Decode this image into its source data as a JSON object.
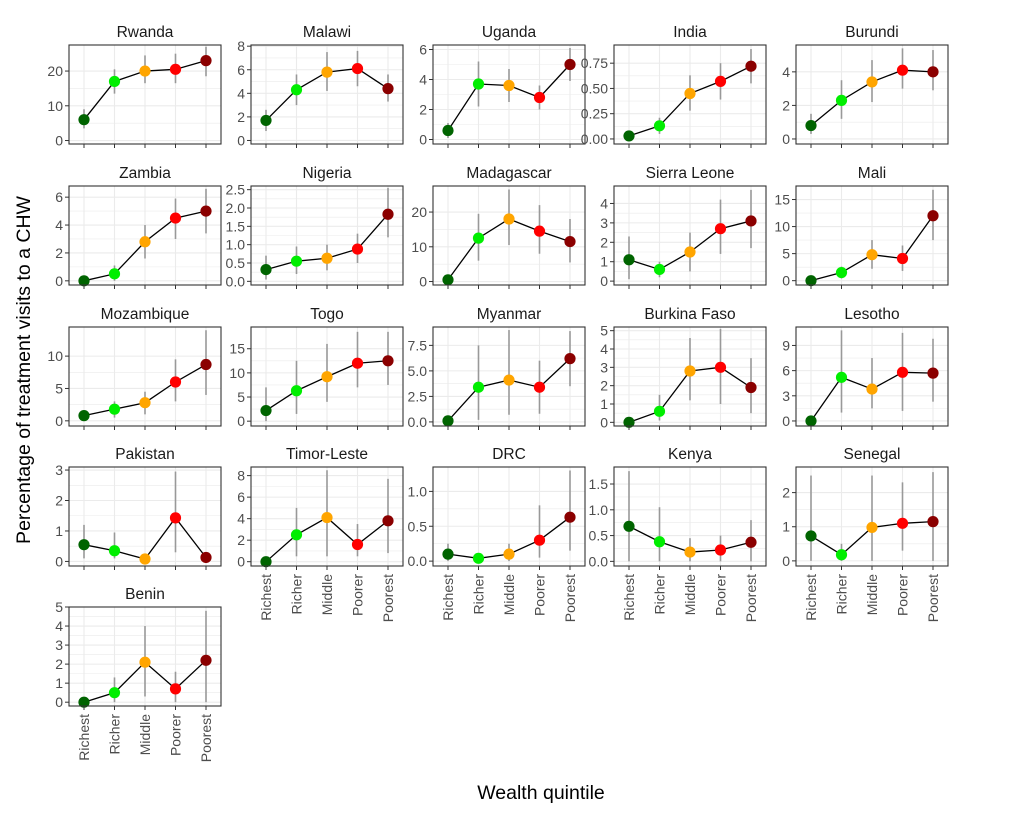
{
  "chart_data": {
    "type": "line",
    "xlabel": "Wealth quintile",
    "ylabel": "Percentage of treatment visits to a CHW",
    "categories": [
      "Richest",
      "Richer",
      "Middle",
      "Poorer",
      "Poorest"
    ],
    "point_colors": [
      "#006400",
      "#00EE00",
      "#FFA500",
      "#FF0000",
      "#8B0000"
    ],
    "errorbar_color": "#999999",
    "line_color": "#000000",
    "panel_background": "#ffffff",
    "grid_color": "#ebebeb",
    "grid": true,
    "panels": [
      {
        "title": "Rwanda",
        "ylim": [
          -1,
          27.5
        ],
        "yticks": [
          0,
          10,
          20
        ],
        "yticklabels": [
          "0",
          "10",
          "20"
        ],
        "values": [
          6.0,
          17.0,
          20.0,
          20.5,
          23.0
        ],
        "lower": [
          3.5,
          13.5,
          16.5,
          16.5,
          18.5
        ],
        "upper": [
          9.0,
          20.5,
          24.5,
          25.0,
          27.0
        ]
      },
      {
        "title": "Malawi",
        "ylim": [
          -0.3,
          8.1
        ],
        "yticks": [
          0,
          2,
          4,
          6,
          8
        ],
        "yticklabels": [
          "0",
          "2",
          "4",
          "6",
          "8"
        ],
        "values": [
          1.7,
          4.3,
          5.8,
          6.1,
          4.4
        ],
        "lower": [
          0.8,
          3.0,
          4.2,
          4.6,
          3.3
        ],
        "upper": [
          2.6,
          5.6,
          7.5,
          7.6,
          5.6
        ]
      },
      {
        "title": "Uganda",
        "ylim": [
          -0.3,
          6.3
        ],
        "yticks": [
          0,
          2,
          4,
          6
        ],
        "yticklabels": [
          "0",
          "2",
          "4",
          "6"
        ],
        "values": [
          0.6,
          3.7,
          3.6,
          2.8,
          5.0
        ],
        "lower": [
          0.1,
          2.2,
          2.5,
          2.0,
          3.9
        ],
        "upper": [
          1.1,
          5.2,
          4.7,
          3.6,
          6.1
        ]
      },
      {
        "title": "India",
        "ylim": [
          -0.05,
          0.93
        ],
        "yticks": [
          0,
          0.25,
          0.5,
          0.75
        ],
        "yticklabels": [
          "0.00",
          "0.25",
          "0.50",
          "0.75"
        ],
        "values": [
          0.03,
          0.13,
          0.45,
          0.57,
          0.72
        ],
        "lower": [
          0.0,
          0.05,
          0.28,
          0.39,
          0.55
        ],
        "upper": [
          0.06,
          0.21,
          0.63,
          0.75,
          0.89
        ]
      },
      {
        "title": "Burundi",
        "ylim": [
          -0.3,
          5.6
        ],
        "yticks": [
          0,
          2,
          4
        ],
        "yticklabels": [
          "0",
          "2",
          "4"
        ],
        "values": [
          0.8,
          2.3,
          3.4,
          4.1,
          4.0
        ],
        "lower": [
          0.3,
          1.2,
          2.2,
          3.0,
          2.9
        ],
        "upper": [
          1.5,
          3.5,
          4.7,
          5.4,
          5.3
        ]
      },
      {
        "title": "Zambia",
        "ylim": [
          -0.3,
          6.8
        ],
        "yticks": [
          0,
          2,
          4,
          6
        ],
        "yticklabels": [
          "0",
          "2",
          "4",
          "6"
        ],
        "values": [
          0.0,
          0.5,
          2.8,
          4.5,
          5.0
        ],
        "lower": [
          0.0,
          0.0,
          1.6,
          3.0,
          3.4
        ],
        "upper": [
          0.1,
          1.1,
          4.0,
          5.9,
          6.6
        ]
      },
      {
        "title": "Nigeria",
        "ylim": [
          -0.1,
          2.6
        ],
        "yticks": [
          0,
          0.5,
          1,
          1.5,
          2,
          2.5
        ],
        "yticklabels": [
          "0.0",
          "0.5",
          "1.0",
          "1.5",
          "2.0",
          "2.5"
        ],
        "values": [
          0.32,
          0.55,
          0.63,
          0.88,
          1.83
        ],
        "lower": [
          0.05,
          0.2,
          0.3,
          0.5,
          1.2
        ],
        "upper": [
          0.7,
          0.95,
          1.0,
          1.3,
          2.55
        ]
      },
      {
        "title": "Madagascar",
        "ylim": [
          -1,
          27.5
        ],
        "yticks": [
          0,
          10,
          20
        ],
        "yticklabels": [
          "0",
          "10",
          "20"
        ],
        "values": [
          0.5,
          12.5,
          18.0,
          14.5,
          11.5
        ],
        "lower": [
          0.0,
          6.0,
          10.5,
          8.0,
          5.5
        ],
        "upper": [
          1.5,
          19.5,
          26.5,
          22.0,
          18.0
        ]
      },
      {
        "title": "Sierra Leone",
        "ylim": [
          -0.2,
          4.9
        ],
        "yticks": [
          0,
          1,
          2,
          3,
          4
        ],
        "yticklabels": [
          "0",
          "1",
          "2",
          "3",
          "4"
        ],
        "values": [
          1.1,
          0.6,
          1.5,
          2.7,
          3.1
        ],
        "lower": [
          0.1,
          0.2,
          0.5,
          1.4,
          1.7
        ],
        "upper": [
          2.3,
          1.0,
          2.5,
          4.2,
          4.7
        ]
      },
      {
        "title": "Mali",
        "ylim": [
          -0.8,
          17.5
        ],
        "yticks": [
          0,
          5,
          10,
          15
        ],
        "yticklabels": [
          "0",
          "5",
          "10",
          "15"
        ],
        "values": [
          0.0,
          1.5,
          4.8,
          4.1,
          12.0
        ],
        "lower": [
          0.0,
          0.4,
          2.2,
          1.8,
          7.5
        ],
        "upper": [
          0.2,
          2.6,
          7.5,
          6.5,
          16.8
        ]
      },
      {
        "title": "Mozambique",
        "ylim": [
          -0.8,
          14.5
        ],
        "yticks": [
          0,
          5,
          10
        ],
        "yticklabels": [
          "0",
          "5",
          "10"
        ],
        "values": [
          0.8,
          1.8,
          2.8,
          6.0,
          8.7
        ],
        "lower": [
          0.2,
          0.5,
          1.0,
          3.0,
          4.0
        ],
        "upper": [
          1.4,
          3.0,
          4.5,
          9.5,
          14.0
        ]
      },
      {
        "title": "Togo",
        "ylim": [
          -1,
          19.5
        ],
        "yticks": [
          0,
          5,
          10,
          15
        ],
        "yticklabels": [
          "0",
          "5",
          "10",
          "15"
        ],
        "values": [
          2.2,
          6.3,
          9.2,
          12.0,
          12.5
        ],
        "lower": [
          0.0,
          1.5,
          4.0,
          7.0,
          7.5
        ],
        "upper": [
          7.0,
          12.5,
          16.0,
          18.5,
          18.5
        ]
      },
      {
        "title": "Myanmar",
        "ylim": [
          -0.4,
          9.3
        ],
        "yticks": [
          0,
          2.5,
          5,
          7.5
        ],
        "yticklabels": [
          "0.0",
          "2.5",
          "5.0",
          "7.5"
        ],
        "values": [
          0.1,
          3.4,
          4.1,
          3.4,
          6.2
        ],
        "lower": [
          0.0,
          0.2,
          0.7,
          0.8,
          3.5
        ],
        "upper": [
          0.3,
          7.5,
          9.0,
          6.0,
          8.9
        ]
      },
      {
        "title": "Burkina Faso",
        "ylim": [
          -0.2,
          5.2
        ],
        "yticks": [
          0,
          1,
          2,
          3,
          4,
          5
        ],
        "yticklabels": [
          "0",
          "1",
          "2",
          "3",
          "4",
          "5"
        ],
        "values": [
          0.0,
          0.6,
          2.8,
          3.0,
          1.9
        ],
        "lower": [
          0.0,
          0.1,
          1.2,
          1.0,
          0.5
        ],
        "upper": [
          0.2,
          1.5,
          4.6,
          5.1,
          3.5
        ]
      },
      {
        "title": "Lesotho",
        "ylim": [
          -0.6,
          11.2
        ],
        "yticks": [
          0,
          3,
          6,
          9
        ],
        "yticklabels": [
          "0",
          "3",
          "6",
          "9"
        ],
        "values": [
          0.0,
          5.2,
          3.8,
          5.8,
          5.7
        ],
        "lower": [
          0.0,
          1.0,
          1.5,
          1.2,
          2.3
        ],
        "upper": [
          0.3,
          10.8,
          7.5,
          10.5,
          9.8
        ]
      },
      {
        "title": "Pakistan",
        "ylim": [
          -0.15,
          3.1
        ],
        "yticks": [
          0,
          1,
          2,
          3
        ],
        "yticklabels": [
          "0",
          "1",
          "2",
          "3"
        ],
        "values": [
          0.55,
          0.35,
          0.08,
          1.43,
          0.13
        ],
        "lower": [
          0.1,
          0.1,
          0.0,
          0.3,
          0.0
        ],
        "upper": [
          1.2,
          0.95,
          0.25,
          2.95,
          0.3
        ]
      },
      {
        "title": "Timor-Leste",
        "ylim": [
          -0.4,
          8.8
        ],
        "yticks": [
          0,
          2,
          4,
          6,
          8
        ],
        "yticklabels": [
          "0",
          "2",
          "4",
          "6",
          "8"
        ],
        "values": [
          0.0,
          2.5,
          4.1,
          1.6,
          3.8
        ],
        "lower": [
          0.0,
          0.5,
          0.5,
          0.5,
          0.8
        ],
        "upper": [
          0.2,
          5.0,
          8.5,
          3.5,
          7.7
        ]
      },
      {
        "title": "DRC",
        "ylim": [
          -0.07,
          1.35
        ],
        "yticks": [
          0,
          0.5,
          1
        ],
        "yticklabels": [
          "0.0",
          "0.5",
          "1.0"
        ],
        "values": [
          0.1,
          0.04,
          0.1,
          0.3,
          0.63
        ],
        "lower": [
          0.0,
          0.0,
          0.0,
          0.05,
          0.15
        ],
        "upper": [
          0.25,
          0.1,
          0.25,
          0.8,
          1.3
        ]
      },
      {
        "title": "Kenya",
        "ylim": [
          -0.09,
          1.83
        ],
        "yticks": [
          0,
          0.5,
          1,
          1.5
        ],
        "yticklabels": [
          "0.0",
          "0.5",
          "1.0",
          "1.5"
        ],
        "values": [
          0.68,
          0.38,
          0.18,
          0.22,
          0.37
        ],
        "lower": [
          0.0,
          0.0,
          0.0,
          0.0,
          0.0
        ],
        "upper": [
          1.75,
          1.05,
          0.45,
          0.5,
          0.8
        ]
      },
      {
        "title": "Senegal",
        "ylim": [
          -0.15,
          2.75
        ],
        "yticks": [
          0,
          1,
          2
        ],
        "yticklabels": [
          "0",
          "1",
          "2"
        ],
        "values": [
          0.73,
          0.18,
          0.98,
          1.1,
          1.15
        ],
        "lower": [
          0.0,
          0.0,
          0.0,
          0.3,
          0.0
        ],
        "upper": [
          2.5,
          0.5,
          2.5,
          2.3,
          2.6
        ]
      },
      {
        "title": "Benin",
        "ylim": [
          -0.2,
          5.0
        ],
        "yticks": [
          0,
          1,
          2,
          3,
          4,
          5
        ],
        "yticklabels": [
          "0",
          "1",
          "2",
          "3",
          "4",
          "5"
        ],
        "values": [
          0.0,
          0.5,
          2.1,
          0.7,
          2.2
        ],
        "lower": [
          0.0,
          0.0,
          0.3,
          0.0,
          0.0
        ],
        "upper": [
          0.2,
          1.3,
          4.0,
          1.6,
          4.8
        ]
      }
    ]
  }
}
